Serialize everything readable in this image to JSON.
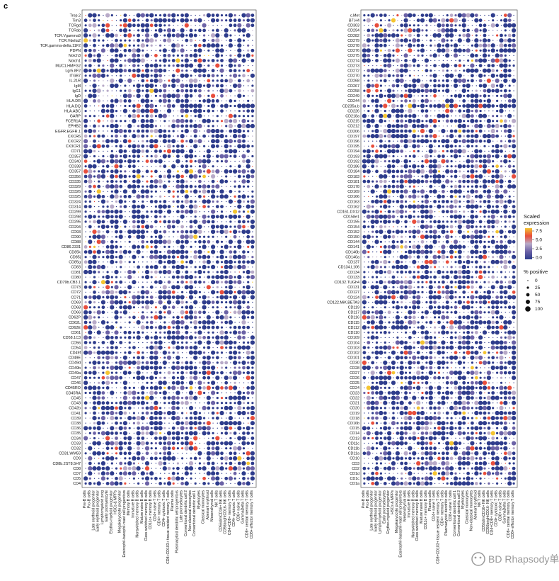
{
  "panel_label": "c",
  "watermark": "BD Rhapsody单细胞平台",
  "chart_data": [
    {
      "type": "dot",
      "genes": [
        "Trop.2",
        "Tim3",
        "TCRgd",
        "TCRab",
        "TCR.Vgamma9",
        "TCR.Vdelta2",
        "TCR.gamma-delta.11F2",
        "PDPN",
        "Notch3",
        "Notch1",
        "MUC1.HMFG2",
        "Lgr5.8F2",
        "ITGB7",
        "IL.21R",
        "IgM",
        "IgG1",
        "IgD",
        "HLA.DR",
        "HLA.DQ",
        "HLA.ABC",
        "GARP",
        "FCER1A",
        "EPHB2",
        "EGFR.EGFR.1",
        "CXCR6",
        "CXCR2",
        "CX3CR1",
        "CD71",
        "CD357",
        "CD340",
        "CD338",
        "CD357",
        "CD356",
        "CD335",
        "CD329",
        "CD326",
        "CD325",
        "CD324",
        "CD314",
        "CD299",
        "CD298",
        "CD295",
        "CD294",
        "CD93",
        "CD90",
        "CD88",
        "CD86.2331",
        "CD85k",
        "CD85j",
        "CD85g",
        "CD83",
        "CD81",
        "CD80",
        "CD79b.CB3.1",
        "CD73",
        "CD72",
        "CD71",
        "CD69",
        "CD68",
        "CD66",
        "CD62P",
        "CD62L",
        "CD62E",
        "CD61",
        "CD58.1C3",
        "CD56",
        "CD54",
        "CD49f",
        "CD49E",
        "CD49d",
        "CD49b",
        "CD49a",
        "CD47",
        "CD46",
        "CD45RO",
        "CD45RA",
        "CD45",
        "CD43",
        "CD42b",
        "CD41",
        "CD39",
        "CD38",
        "CD36",
        "CD35",
        "CD34",
        "CD33",
        "CD32",
        "CD31.WM59",
        "CD9",
        "CD8b.2ST8.5H7",
        "CD8",
        "CD7",
        "CD5",
        "CD4"
      ],
      "cell_types": [
        "Pre-B cells",
        "Pro-B cells",
        "Late erythroid progenitor",
        "Early erythroid progenitor",
        "Lymphomyeloid prog",
        "Early promyelocyte",
        "Erythro-myeloid progenitor",
        "HSCs & MPPs",
        "Megakaryocyte progenitor",
        "Eosinophil-basophil-mast cell progenitors",
        "Memory B cells",
        "Immature B cells",
        "Nonswitched memory B cells",
        "Mature naive B cells",
        "Class switched memory B cells",
        "CD11c+ memory B cells",
        "CD4+ naive T cells",
        "CD4+ memory T cells",
        "CD4+ cytotoxic T cells",
        "CD8+CD103+ tissue resident memory T cells",
        "Plasma cells",
        "Plasmacytoid dendritic cell progenitors",
        "Late promyelocytes",
        "Conventional dendritic cell 2",
        "Non-classical monocytes",
        "Conventional dendritic cell 1",
        "Myelocytes",
        "Classical monocytes",
        "Aberrant erythroid",
        "Mesenchymal cells",
        "NK T cells",
        "CD56dimCD16+ NK cells",
        "CD56brightCD16- NK cells",
        "CD4+CD8+ memory T cells",
        "CD4+ cytotoxic T cells",
        "CD8+ naive T cells",
        "GammaDelta T cells",
        "CD8+ central memory T cells",
        "CD8+ effector memory T cells"
      ]
    },
    {
      "type": "dot",
      "genes": [
        "c.Met",
        "B7.H4",
        "CD303",
        "CD294",
        "CD282",
        "CD279",
        "CD278",
        "CD276",
        "CD275",
        "CD274",
        "CD273",
        "CD272",
        "CD270",
        "CD268",
        "CD267",
        "CD258",
        "CD249",
        "CD244",
        "CD235a.b",
        "CD226",
        "CD218a",
        "CD215",
        "CD212",
        "CD206",
        "CD197",
        "CD196",
        "CD195",
        "CD194",
        "CD193",
        "CD192",
        "CD186",
        "CD184",
        "CD183",
        "CD181",
        "CD178",
        "CD169",
        "CD166",
        "CD163",
        "CD162",
        "CD161.DX12",
        "CD158e1",
        "CD155",
        "CD154",
        "CD152",
        "CD150",
        "CD144",
        "CD141",
        "CD140b",
        "CD140a",
        "CD137",
        "CD134.L106",
        "CD134",
        "CD133",
        "CD132.TUGh4",
        "CD131",
        "CD127",
        "CD124",
        "CD122.MiK.BETA3",
        "CD119",
        "CD117",
        "CD116",
        "CD115",
        "CD112",
        "CD110",
        "CD109",
        "CD104",
        "CD103",
        "CD102",
        "CD101",
        "CD30",
        "CD28",
        "CD27",
        "CD26",
        "CD25",
        "CD24",
        "CD23",
        "CD22",
        "CD21",
        "CD20",
        "CD19",
        "CD18",
        "CD16b",
        "CD15",
        "CD14",
        "CD13",
        "CD11c",
        "CD11b",
        "CD11a",
        "CD10",
        "CD3",
        "CD2",
        "CD1d",
        "CD1c",
        "CD1a"
      ],
      "cell_types": [
        "Pre-B cells",
        "Pro-B cells",
        "Late erythroid progenitor",
        "Early erythroid progenitor",
        "Lymphomyeloid progenitor",
        "Early promyelocytes",
        "Erythro-myeloid progenitor",
        "HSCs & MPPs",
        "Megakaryocyte progenitor",
        "Eosinophil-basophil-mast cell progenitors",
        "Mesenchymal cells",
        "Immature B cells",
        "Nonswitched memory B cells",
        "Class switched memory B cells",
        "Mature naive B cells",
        "CD11c+ memory B cells",
        "Plasma cells",
        "CD4+ naive T cells",
        "CD8+CD103+ tissue resident memory T cells",
        "CD4+ memory T cells",
        "Plasmacytoid dendritic cells",
        "CD8+ naive T cells",
        "Conventional dendritic cell 1",
        "Conventional dendritic cell 2",
        "Myelocytes",
        "Classical monocytes",
        "Non-classical monocytes",
        "Aberrant erythroid",
        "NK T cells",
        "CD56dimCD16+ NK cells",
        "CD56brightCD16- NK cells",
        "CD4+CD8+ memory T cells",
        "CD4+ cytotoxic T cells",
        "CD8+ naive T cells",
        "GammaDelta T cells",
        "CD8+ central memory T cells",
        "CD8+ effector memory T cells"
      ]
    }
  ],
  "legend": {
    "color_title": "Scaled\nexpression",
    "color_ticks": [
      "7.5",
      "5.0",
      "2.5",
      "0.0"
    ],
    "colors": [
      "#2e3c8c",
      "#6b62a6",
      "#b8aac8",
      "#e84e3c",
      "#f4c430"
    ],
    "size_title": "% positive",
    "size_ticks": [
      "0",
      "25",
      "50",
      "75",
      "100"
    ]
  }
}
